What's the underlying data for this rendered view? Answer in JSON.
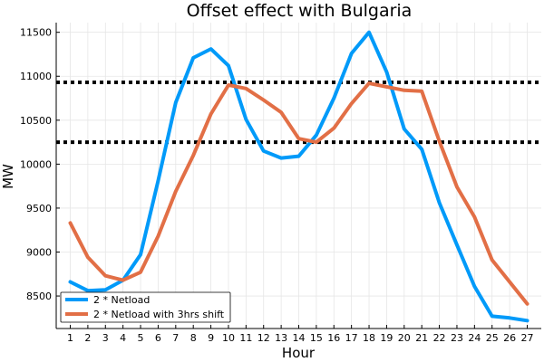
{
  "chart_data": {
    "type": "line",
    "title": "Offset effect with Bulgaria",
    "xlabel": "Hour",
    "ylabel": "MW",
    "x": [
      1,
      2,
      3,
      4,
      5,
      6,
      7,
      8,
      9,
      10,
      11,
      12,
      13,
      14,
      15,
      16,
      17,
      18,
      19,
      20,
      21,
      22,
      23,
      24,
      25,
      26,
      27
    ],
    "xticks": [
      "1",
      "2",
      "3",
      "4",
      "5",
      "6",
      "7",
      "8",
      "9",
      "10",
      "11",
      "12",
      "13",
      "14",
      "15",
      "16",
      "17",
      "18",
      "19",
      "20",
      "21",
      "22",
      "23",
      "24",
      "25",
      "26",
      "27"
    ],
    "yticks": [
      8500,
      9000,
      9500,
      10000,
      10500,
      11000,
      11500
    ],
    "ytick_labels": [
      "8500",
      "9000",
      "9500",
      "10000",
      "10500",
      "11000",
      "11500"
    ],
    "xlim": [
      0.2,
      27.8
    ],
    "ylim": [
      8130,
      11610
    ],
    "grid": true,
    "legend_position": "bottom-left",
    "series": [
      {
        "name": "2 * Netload",
        "color": "#009af9",
        "values": [
          8660,
          8560,
          8570,
          8680,
          8970,
          9810,
          10700,
          11210,
          11310,
          11120,
          10510,
          10150,
          10070,
          10090,
          10330,
          10750,
          11260,
          11500,
          11050,
          10400,
          10170,
          9560,
          9080,
          8610,
          8270,
          8250,
          8220
        ]
      },
      {
        "name": "2 * Netload with 3hrs shift",
        "color": "#e26f46",
        "values": [
          9330,
          8940,
          8730,
          8680,
          8770,
          9180,
          9690,
          10100,
          10570,
          10900,
          10860,
          10730,
          10590,
          10290,
          10250,
          10410,
          10690,
          10920,
          10880,
          10840,
          10830,
          10260,
          9740,
          9400,
          8910,
          8660,
          8410
        ]
      }
    ],
    "reference_lines": [
      {
        "y": 10930,
        "style": "dotted",
        "color": "#000000"
      },
      {
        "y": 10250,
        "style": "dotted",
        "color": "#000000"
      }
    ]
  }
}
